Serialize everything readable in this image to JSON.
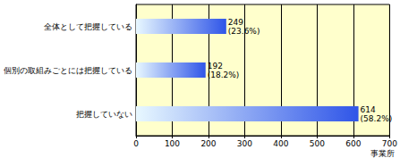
{
  "chart_data": {
    "type": "bar",
    "orientation": "horizontal",
    "categories": [
      "全体として把握している",
      "個別の取組みごとには把握している",
      "把握していない"
    ],
    "values": [
      249,
      192,
      614
    ],
    "value_labels": [
      "249\n(23.6%)",
      "192\n(18.2%)",
      "614\n(58.2%)"
    ],
    "data_labels": true,
    "color": "#2f55e8",
    "x_label": "事業所",
    "xlim": [
      0,
      700
    ],
    "xticks": [
      0,
      100,
      200,
      300,
      400,
      500,
      600,
      700
    ],
    "grid": true
  }
}
